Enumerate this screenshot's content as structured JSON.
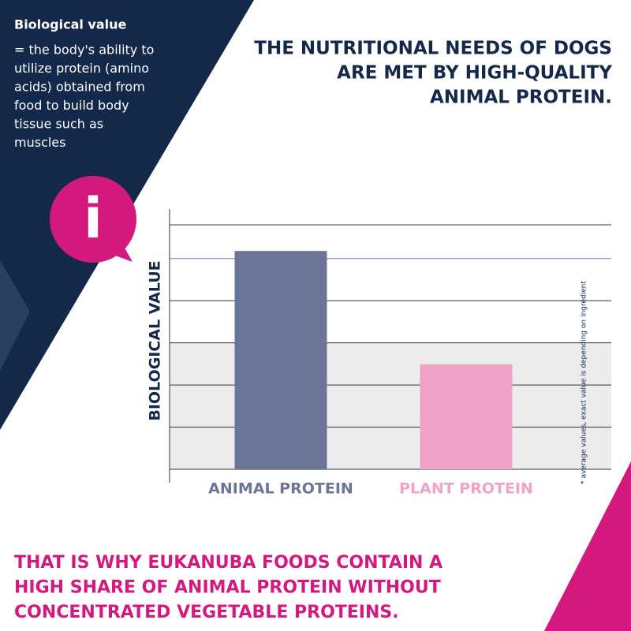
{
  "chart_data": {
    "type": "bar",
    "info_title": "Biological value",
    "info_lines": [
      "= the body's ability to",
      "utilize protein (amino",
      "acids) obtained from",
      "food to build body",
      "tissue such as",
      "muscles"
    ],
    "title_lines": [
      "THE NUTRITIONAL NEEDS OF DOGS",
      "ARE MET BY HIGH-QUALITY",
      "ANIMAL PROTEIN."
    ],
    "icon": "i",
    "y_label": "BIOLOGICAL VALUE",
    "footnote": "* average values, exact value is depending on ingredient",
    "categories": [
      "ANIMAL PROTEIN",
      "PLANT PROTEIN"
    ],
    "values": [
      5.18,
      2.49
    ],
    "colors": [
      "#6b7597",
      "#f2a2c8"
    ],
    "ylim": [
      0,
      5.8
    ],
    "yticks": [
      0,
      1,
      2,
      3,
      4,
      5,
      5.8
    ],
    "grid": true,
    "conclusion_lines": [
      "THAT IS WHY EUKANUBA FOODS CONTAIN A",
      "HIGH SHARE OF ANIMAL PROTEIN WITHOUT",
      "CONCENTRATED VEGETABLE PROTEINS."
    ]
  }
}
